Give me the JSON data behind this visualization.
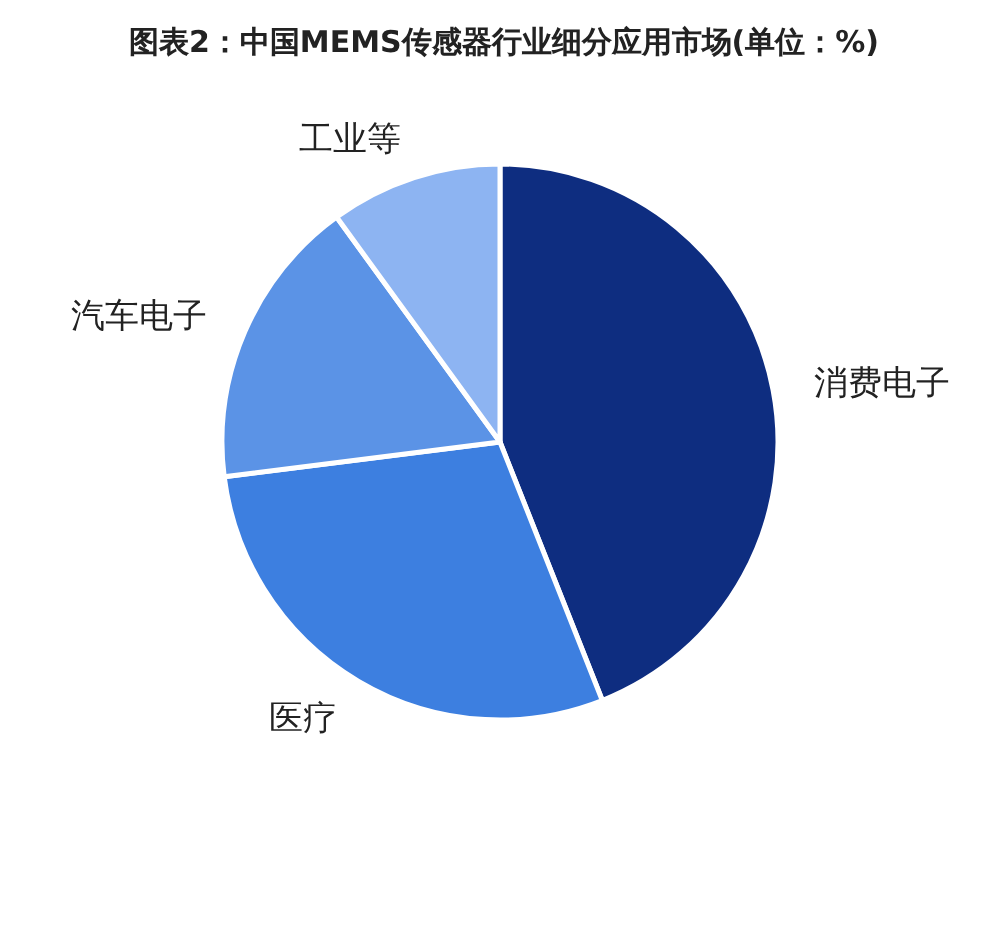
{
  "chart_data": {
    "type": "pie",
    "title": "图表2：中国MEMS传感器行业细分应用市场(单位：%)",
    "categories": [
      "消费电子",
      "医疗",
      "汽车电子",
      "工业等"
    ],
    "values": [
      44,
      29,
      17,
      10
    ],
    "colors": [
      "#0e2d80",
      "#3d7fe0",
      "#5b93e6",
      "#8db4f2"
    ]
  }
}
